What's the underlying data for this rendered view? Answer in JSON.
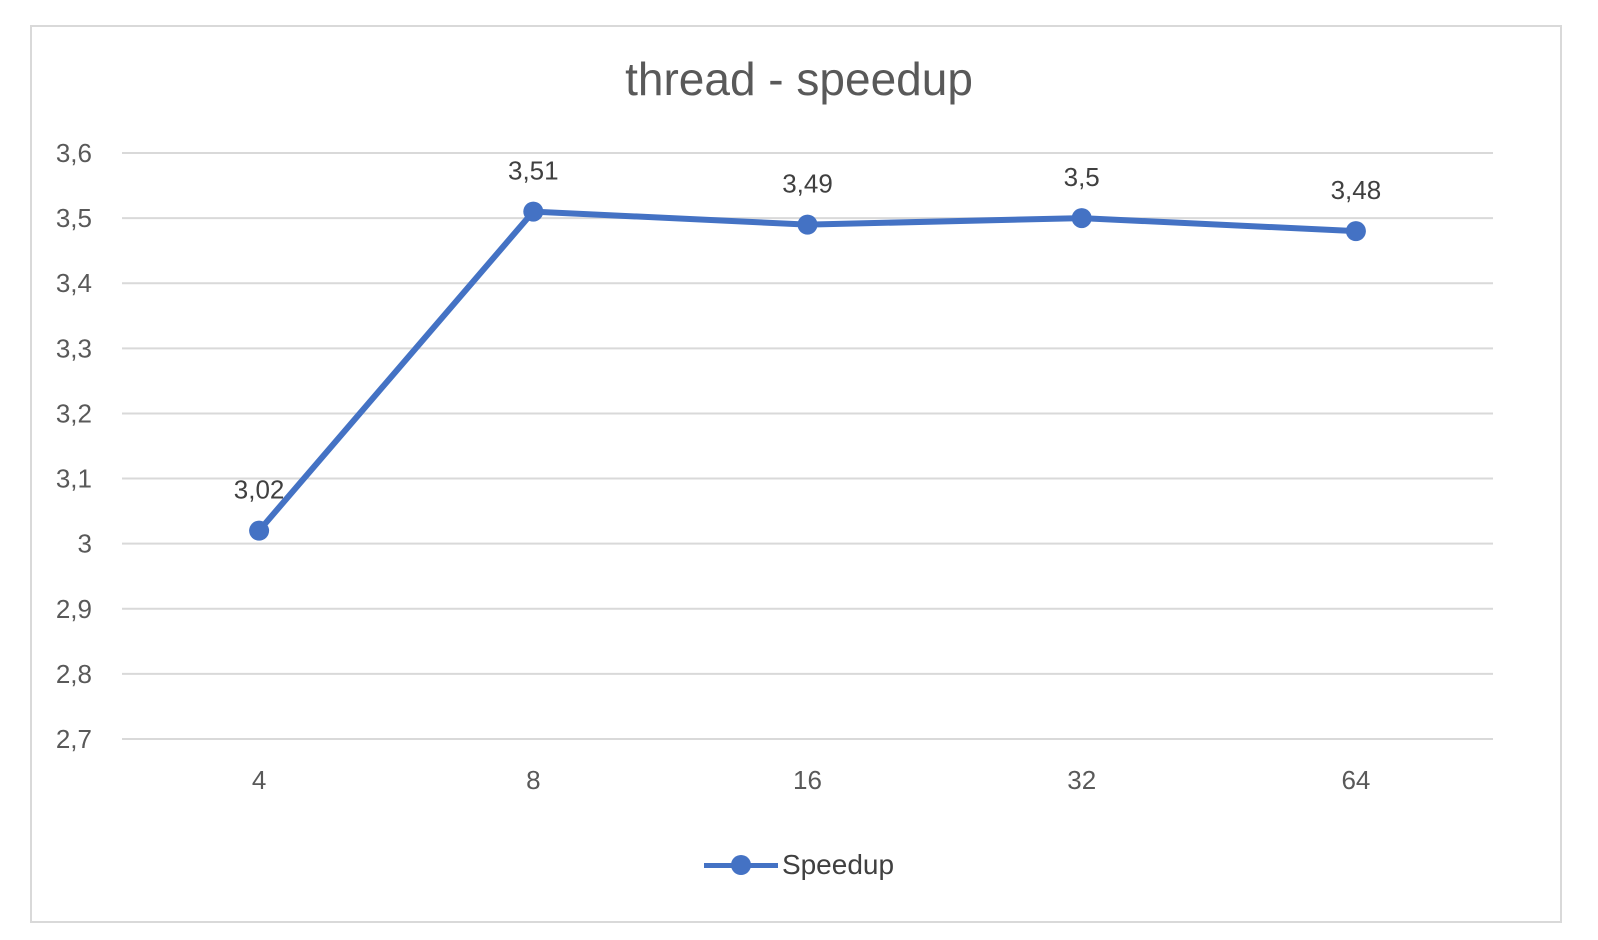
{
  "chart_data": {
    "type": "line",
    "title": "thread - speedup",
    "categories": [
      "4",
      "8",
      "16",
      "32",
      "64"
    ],
    "series": [
      {
        "name": "Speedup",
        "values": [
          3.02,
          3.51,
          3.49,
          3.5,
          3.48
        ],
        "labels": [
          "3,02",
          "3,51",
          "3,49",
          "3,5",
          "3,48"
        ],
        "color": "#4472c4"
      }
    ],
    "ylim": [
      2.7,
      3.6
    ],
    "yticks": [
      2.7,
      2.8,
      2.9,
      3.0,
      3.1,
      3.2,
      3.3,
      3.4,
      3.5,
      3.6
    ],
    "ytick_labels": [
      "2,7",
      "2,8",
      "2,9",
      "3",
      "3,1",
      "3,2",
      "3,3",
      "3,4",
      "3,5",
      "3,6"
    ],
    "grid": true,
    "legend_position": "bottom",
    "gridline_color": "#d9d9d9"
  }
}
